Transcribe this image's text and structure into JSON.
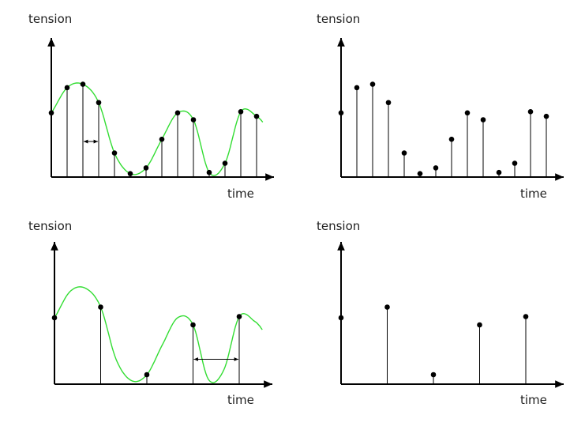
{
  "labels": {
    "y_axis": "tension",
    "x_axis": "time"
  },
  "colors": {
    "curve": "#33dd33",
    "ink": "#000000"
  },
  "panels": [
    {
      "id": "dense-with-curve",
      "show_curve": true,
      "samples": [
        {
          "t": 0.0,
          "v": 0.56
        },
        {
          "t": 1.0,
          "v": 0.78
        },
        {
          "t": 2.0,
          "v": 0.81
        },
        {
          "t": 3.0,
          "v": 0.65
        },
        {
          "t": 4.0,
          "v": 0.21
        },
        {
          "t": 5.0,
          "v": 0.03
        },
        {
          "t": 6.0,
          "v": 0.08
        },
        {
          "t": 7.0,
          "v": 0.33
        },
        {
          "t": 8.0,
          "v": 0.56
        },
        {
          "t": 9.0,
          "v": 0.5
        },
        {
          "t": 10.0,
          "v": 0.04
        },
        {
          "t": 11.0,
          "v": 0.12
        },
        {
          "t": 12.0,
          "v": 0.57
        },
        {
          "t": 13.0,
          "v": 0.53
        }
      ],
      "interval_marker": {
        "from_t": 2.0,
        "to_t": 3.0,
        "v": 0.31
      }
    },
    {
      "id": "dense-samples-only",
      "show_curve": false,
      "samples": [
        {
          "t": 0.0,
          "v": 0.56
        },
        {
          "t": 1.0,
          "v": 0.78
        },
        {
          "t": 2.0,
          "v": 0.81
        },
        {
          "t": 3.0,
          "v": 0.65
        },
        {
          "t": 4.0,
          "v": 0.21
        },
        {
          "t": 5.0,
          "v": 0.03
        },
        {
          "t": 6.0,
          "v": 0.08
        },
        {
          "t": 7.0,
          "v": 0.33
        },
        {
          "t": 8.0,
          "v": 0.56
        },
        {
          "t": 9.0,
          "v": 0.5
        },
        {
          "t": 10.0,
          "v": 0.04
        },
        {
          "t": 11.0,
          "v": 0.12
        },
        {
          "t": 12.0,
          "v": 0.57
        },
        {
          "t": 13.0,
          "v": 0.53
        }
      ]
    },
    {
      "id": "sparse-with-curve",
      "show_curve": true,
      "samples": [
        {
          "t": 0.0,
          "v": 0.56
        },
        {
          "t": 3.0,
          "v": 0.65
        },
        {
          "t": 6.0,
          "v": 0.08
        },
        {
          "t": 9.0,
          "v": 0.5
        },
        {
          "t": 12.0,
          "v": 0.57
        }
      ],
      "interval_marker": {
        "from_t": 9.0,
        "to_t": 12.0,
        "v": 0.21
      }
    },
    {
      "id": "sparse-samples-only",
      "show_curve": false,
      "samples": [
        {
          "t": 0.0,
          "v": 0.56
        },
        {
          "t": 3.0,
          "v": 0.65
        },
        {
          "t": 6.0,
          "v": 0.08
        },
        {
          "t": 9.0,
          "v": 0.5
        },
        {
          "t": 12.0,
          "v": 0.57
        }
      ]
    }
  ]
}
